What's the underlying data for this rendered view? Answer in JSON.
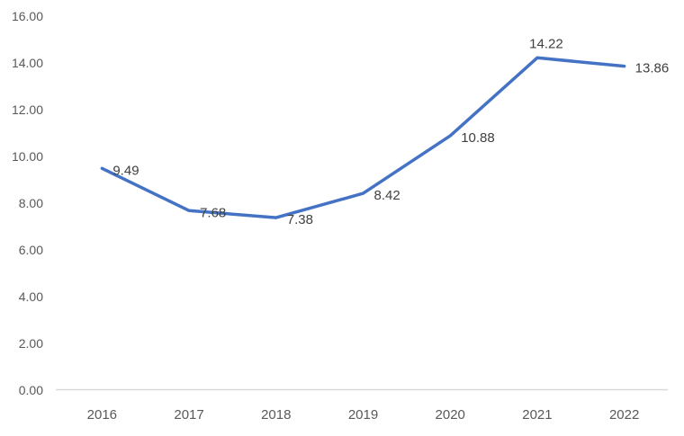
{
  "chart_data": {
    "type": "line",
    "title": "",
    "xlabel": "",
    "ylabel": "",
    "categories": [
      "2016",
      "2017",
      "2018",
      "2019",
      "2020",
      "2021",
      "2022"
    ],
    "series": [
      {
        "name": "value",
        "values": [
          9.49,
          7.68,
          7.38,
          8.42,
          10.88,
          14.22,
          13.86
        ],
        "data_labels": [
          "9.49",
          "7.68",
          "7.38",
          "8.42",
          "10.88",
          "14.22",
          "13.86"
        ],
        "label_positions": [
          "right",
          "right",
          "right",
          "right",
          "right",
          "above",
          "right"
        ]
      }
    ],
    "ylim": [
      0,
      16
    ],
    "y_tick_step": 2,
    "y_tick_labels": [
      "0.00",
      "2.00",
      "4.00",
      "6.00",
      "8.00",
      "10.00",
      "12.00",
      "14.00",
      "16.00"
    ],
    "grid": false,
    "legend": "none",
    "colors": {
      "line": "#4472C4",
      "axis_line": "#d9d9d9",
      "tick_label": "#595959",
      "data_label": "#404040",
      "background": "#ffffff"
    }
  }
}
